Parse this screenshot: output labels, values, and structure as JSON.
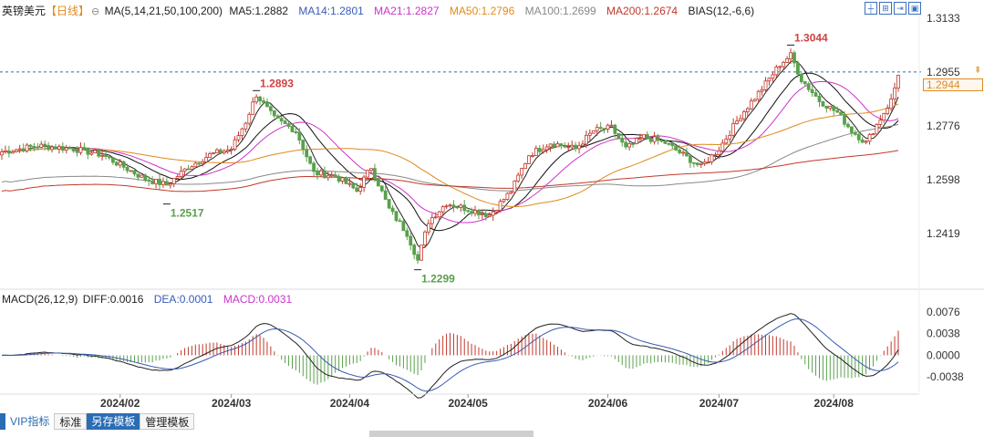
{
  "title": "英镑美元",
  "period": "【日线】",
  "ma_header": {
    "ma_params": "MA(5,14,21,50,100,200)",
    "ma5": "MA5:1.2882",
    "ma14": "MA14:1.2801",
    "ma21": "MA21:1.2827",
    "ma50": "MA50:1.2796",
    "ma100": "MA100:1.2699",
    "ma200": "MA200:1.2674",
    "bias": "BIAS(12,-6,6)"
  },
  "macd_header": {
    "params": "MACD(26,12,9)",
    "diff": "DIFF:0.0016",
    "dea": "DEA:0.0001",
    "macd": "MACD:0.0031"
  },
  "toolbar": {
    "vip": "VIP指标",
    "standard": "标准",
    "save_as": "另存模板",
    "manage": "管理模板"
  },
  "colors": {
    "up": "#c0392b",
    "down": "#5aa04c",
    "ma5": "#222222",
    "ma14": "#111111",
    "ma21": "#cc33cc",
    "ma50": "#e08a1e",
    "ma100": "#888888",
    "ma200": "#c0392b",
    "axis": "#333333",
    "accent": "#2a6db5"
  },
  "chart_data": {
    "type": "candlestick",
    "instrument": "GBP/USD",
    "y_axis_ticks": [
      "1.3133",
      "1.2955",
      "1.2776",
      "1.2598",
      "1.2419"
    ],
    "ylim": [
      1.2299,
      1.3133
    ],
    "x_ticks": [
      "2024/02",
      "2024/03",
      "2024/04",
      "2024/05",
      "2024/06",
      "2024/07",
      "2024/08"
    ],
    "current_price": "1.2944",
    "reference_line": 1.2955,
    "annotations": [
      {
        "text": "1.2893",
        "value": 1.2893,
        "kind": "high"
      },
      {
        "text": "1.2517",
        "value": 1.2517,
        "kind": "low"
      },
      {
        "text": "1.3044",
        "value": 1.3044,
        "kind": "high"
      },
      {
        "text": "1.2299",
        "value": 1.2299,
        "kind": "low"
      }
    ],
    "close_anchors": [
      [
        0,
        1.269
      ],
      [
        10,
        1.271
      ],
      [
        20,
        1.27
      ],
      [
        28,
        1.268
      ],
      [
        34,
        1.264
      ],
      [
        40,
        1.26
      ],
      [
        46,
        1.258
      ],
      [
        52,
        1.264
      ],
      [
        58,
        1.268
      ],
      [
        64,
        1.27
      ],
      [
        68,
        1.279
      ],
      [
        71,
        1.288
      ],
      [
        76,
        1.28
      ],
      [
        82,
        1.276
      ],
      [
        87,
        1.262
      ],
      [
        93,
        1.261
      ],
      [
        99,
        1.256
      ],
      [
        103,
        1.264
      ],
      [
        108,
        1.25
      ],
      [
        113,
        1.242
      ],
      [
        116,
        1.233
      ],
      [
        119,
        1.246
      ],
      [
        124,
        1.252
      ],
      [
        130,
        1.25
      ],
      [
        136,
        1.248
      ],
      [
        142,
        1.256
      ],
      [
        147,
        1.268
      ],
      [
        153,
        1.272
      ],
      [
        160,
        1.27
      ],
      [
        165,
        1.276
      ],
      [
        170,
        1.277
      ],
      [
        174,
        1.27
      ],
      [
        179,
        1.274
      ],
      [
        185,
        1.272
      ],
      [
        190,
        1.268
      ],
      [
        195,
        1.264
      ],
      [
        200,
        1.27
      ],
      [
        206,
        1.281
      ],
      [
        212,
        1.29
      ],
      [
        217,
        1.298
      ],
      [
        220,
        1.301
      ],
      [
        223,
        1.293
      ],
      [
        228,
        1.286
      ],
      [
        233,
        1.282
      ],
      [
        237,
        1.276
      ],
      [
        241,
        1.272
      ],
      [
        244,
        1.278
      ],
      [
        248,
        1.286
      ],
      [
        250,
        1.2944
      ]
    ],
    "macd_axis_ticks": [
      "0.0076",
      "0.0038",
      "0.0000",
      "-0.0038"
    ],
    "macd_ylim": [
      -0.0076,
      0.0095
    ]
  }
}
